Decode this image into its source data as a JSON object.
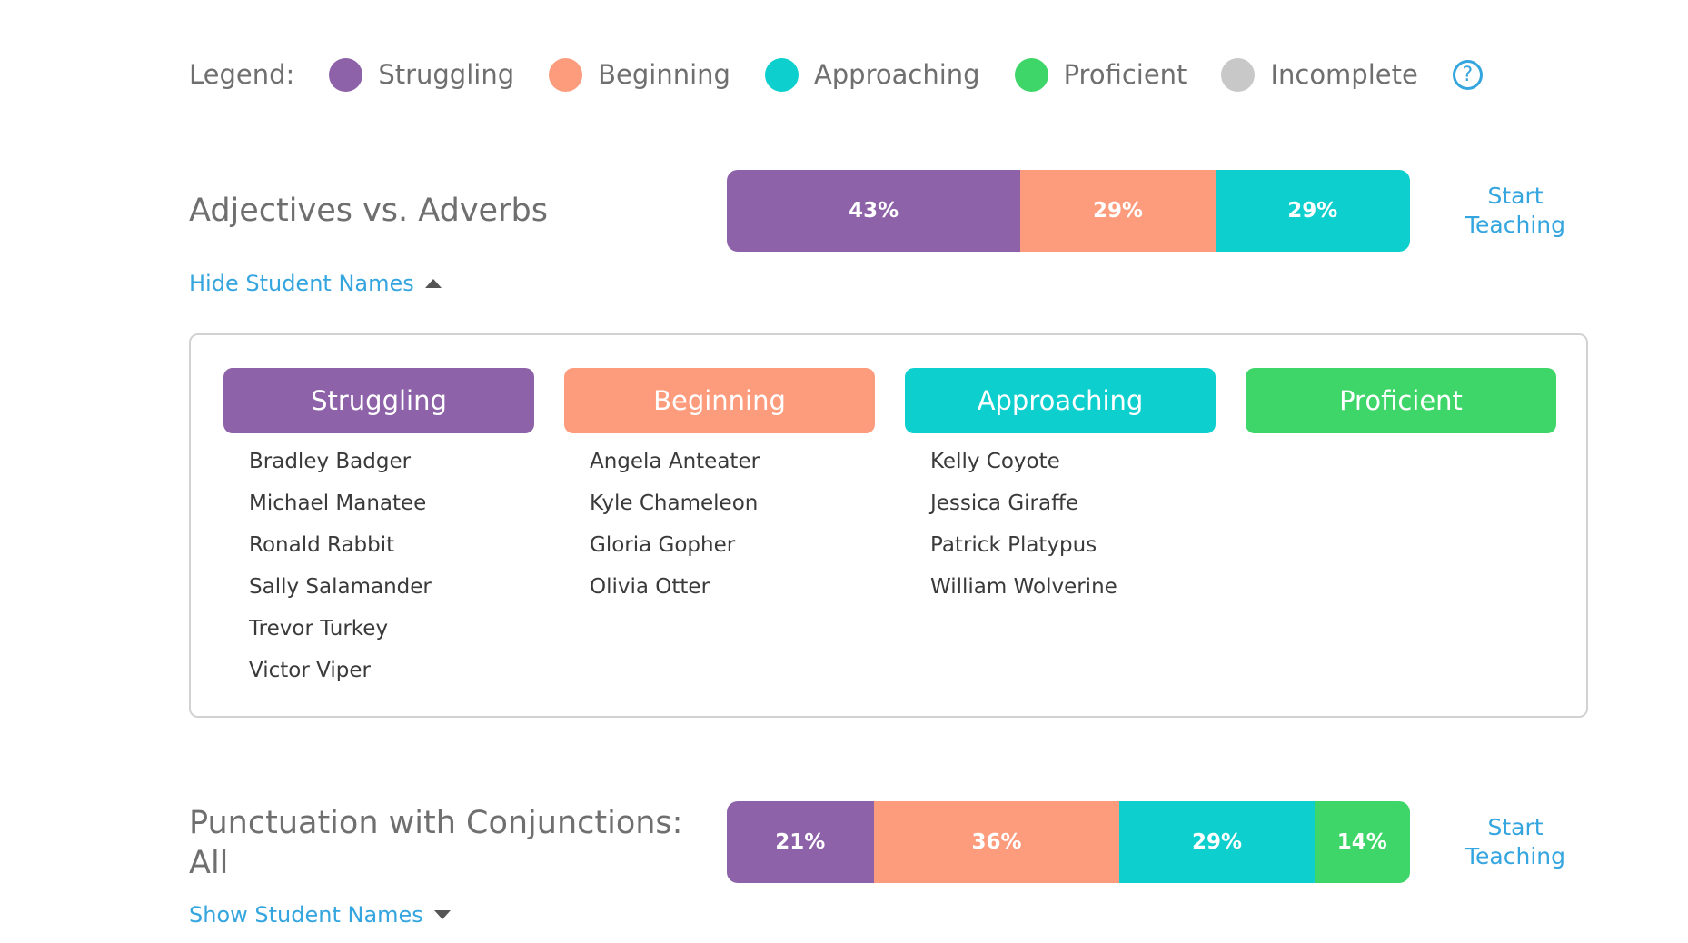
{
  "colors": {
    "struggling": "#8e62a8",
    "beginning": "#fd9c7d",
    "approaching": "#0ccfce",
    "proficient": "#3ed668",
    "incomplete": "#c8c8c8",
    "link": "#34a5de"
  },
  "legend": {
    "label": "Legend:",
    "items": [
      {
        "label": "Struggling",
        "color": "#8e62a8"
      },
      {
        "label": "Beginning",
        "color": "#fd9c7d"
      },
      {
        "label": "Approaching",
        "color": "#0ccfce"
      },
      {
        "label": "Proficient",
        "color": "#3ed668"
      },
      {
        "label": "Incomplete",
        "color": "#c8c8c8"
      }
    ],
    "help_icon": "question-circle-icon",
    "help_glyph": "?"
  },
  "skills": [
    {
      "title": "Adjectives vs. Adverbs",
      "bar": [
        {
          "label": "43%",
          "value": 43,
          "color": "#8e62a8"
        },
        {
          "label": "29%",
          "value": 29,
          "color": "#fd9c7d"
        },
        {
          "label": "29%",
          "value": 29,
          "color": "#0ccfce"
        }
      ],
      "start_label_1": "Start",
      "start_label_2": "Teaching",
      "toggle_label": "Hide Student Names",
      "columns": [
        {
          "header": "Struggling",
          "color": "#8e62a8",
          "students": [
            "Bradley Badger",
            "Michael Manatee",
            "Ronald Rabbit",
            "Sally Salamander",
            "Trevor Turkey",
            "Victor Viper"
          ]
        },
        {
          "header": "Beginning",
          "color": "#fd9c7d",
          "students": [
            "Angela Anteater",
            "Kyle Chameleon",
            "Gloria Gopher",
            "Olivia Otter"
          ]
        },
        {
          "header": "Approaching",
          "color": "#0ccfce",
          "students": [
            "Kelly Coyote",
            "Jessica Giraffe",
            "Patrick Platypus",
            "William Wolverine"
          ]
        },
        {
          "header": "Proficient",
          "color": "#3ed668",
          "students": []
        }
      ]
    },
    {
      "title_line1": "Punctuation with Conjunctions:",
      "title_line2": "All",
      "bar": [
        {
          "label": "21%",
          "value": 21,
          "color": "#8e62a8"
        },
        {
          "label": "36%",
          "value": 36,
          "color": "#fd9c7d"
        },
        {
          "label": "29%",
          "value": 29,
          "color": "#0ccfce"
        },
        {
          "label": "14%",
          "value": 14,
          "color": "#3ed668"
        }
      ],
      "start_label_1": "Start",
      "start_label_2": "Teaching",
      "toggle_label": "Show Student Names"
    }
  ]
}
